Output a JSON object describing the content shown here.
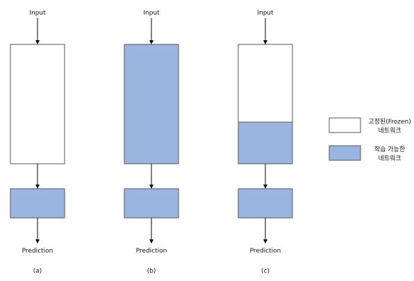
{
  "diagram": {
    "columns": [
      {
        "input_label": "Input",
        "prediction_label": "Prediction",
        "caption": "(a)",
        "upper_block": "frozen",
        "lower_block": "trainable"
      },
      {
        "input_label": "Input",
        "prediction_label": "Prediction",
        "caption": "(b)",
        "upper_block": "trainable",
        "lower_block": "trainable"
      },
      {
        "input_label": "Input",
        "prediction_label": "Prediction",
        "caption": "(c)",
        "upper_block": "partially-trainable",
        "lower_block": "trainable"
      }
    ],
    "legend": {
      "frozen": {
        "line1": "고정된(Frozen)",
        "line2": "네트워크"
      },
      "trainable": {
        "line1": "학습 가능한",
        "line2": "네트워크"
      }
    },
    "colors": {
      "frozen": "#ffffff",
      "trainable": "#9ab6e0",
      "stroke": "#555555"
    }
  }
}
